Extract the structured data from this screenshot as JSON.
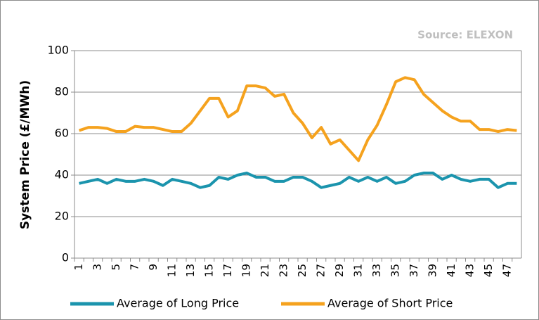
{
  "chart_data": {
    "type": "line",
    "annotation": "Source: ELEXON",
    "y_label": "System Price (£/MWh)",
    "categories": [
      "1",
      null,
      "3",
      null,
      "5",
      null,
      "7",
      null,
      "9",
      null,
      "11",
      null,
      "13",
      null,
      "15",
      null,
      "17",
      null,
      "19",
      null,
      "21",
      null,
      "23",
      null,
      "25",
      null,
      "27",
      null,
      "29",
      null,
      "31",
      null,
      "33",
      null,
      "35",
      null,
      "37",
      null,
      "39",
      null,
      "41",
      null,
      "43",
      null,
      "45",
      null,
      "47",
      null
    ],
    "series": [
      {
        "name": "Average of Long Price",
        "color": "#1b94ad",
        "values": [
          36,
          37,
          38,
          36,
          38,
          37,
          37,
          38,
          37,
          35,
          38,
          37,
          36,
          34,
          35,
          39,
          38,
          40,
          41,
          39,
          39,
          37,
          37,
          39,
          39,
          37,
          34,
          35,
          36,
          39,
          37,
          39,
          37,
          39,
          36,
          37,
          40,
          41,
          41,
          38,
          40,
          38,
          37,
          38,
          38,
          34,
          36,
          36
        ]
      },
      {
        "name": "Average of Short Price",
        "color": "#f5a21e",
        "values": [
          61.5,
          63,
          63,
          62.5,
          61,
          61,
          63.5,
          63,
          63,
          62,
          61,
          61,
          65,
          71,
          77,
          77,
          68,
          71,
          83,
          83,
          82,
          78,
          79,
          70,
          65,
          58,
          63,
          55,
          57,
          52,
          47,
          57,
          64,
          74,
          85,
          87,
          86,
          79,
          75,
          71,
          68,
          66,
          66,
          62,
          62,
          61,
          62,
          61.5
        ]
      }
    ],
    "ylim": [
      0,
      100
    ],
    "yticks": [
      0,
      20,
      40,
      60,
      80,
      100
    ],
    "grid": true,
    "legend": "bottom"
  }
}
